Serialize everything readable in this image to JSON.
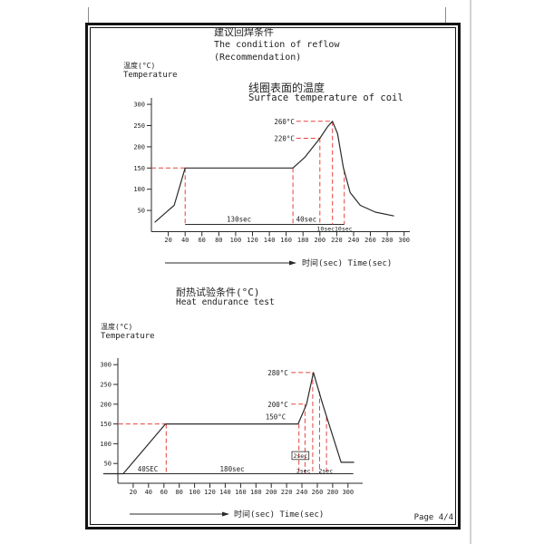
{
  "page": {
    "footer_label": "Page 4/4"
  },
  "colors": {
    "line": "#2a2a2a",
    "red": "#e8433f",
    "frame": "#141414",
    "text": "#222222"
  },
  "header": {
    "title_zh": "建议回焊条件",
    "title_en": "The condition of reflow",
    "title_note": "(Recommendation)"
  },
  "reflow_section": {
    "y_axis_label_zh": "温度(°C)",
    "y_axis_label_en": "Temperature",
    "subtitle_zh": "线圈表面的温度",
    "subtitle_en": "Surface temperature of coil"
  },
  "heat_section": {
    "heading_zh": "耐热试验条件(°C)",
    "heading_en": "Heat endurance test",
    "y_axis_label_zh": "温度(°C)",
    "y_axis_label_en": "Temperature"
  },
  "chart_data": [
    {
      "type": "line",
      "title": "线圈表面的温度 / Surface temperature of coil",
      "xlabel": "时间(sec) Time(sec)",
      "ylabel": "温度(°C) Temperature",
      "xlim": [
        0,
        310
      ],
      "ylim": [
        0,
        310
      ],
      "grid": false,
      "x_ticks": [
        20,
        40,
        60,
        80,
        100,
        120,
        140,
        160,
        180,
        200,
        220,
        240,
        260,
        280,
        300
      ],
      "y_ticks": [
        50,
        100,
        150,
        200,
        250,
        300
      ],
      "curve_points": [
        [
          4,
          22
        ],
        [
          20,
          50
        ],
        [
          27,
          62
        ],
        [
          40,
          150
        ],
        [
          168,
          150
        ],
        [
          182,
          175
        ],
        [
          200,
          220
        ],
        [
          209,
          247
        ],
        [
          215,
          260
        ],
        [
          221,
          231
        ],
        [
          228,
          150
        ],
        [
          236,
          92
        ],
        [
          248,
          62
        ],
        [
          266,
          46
        ],
        [
          288,
          37
        ]
      ],
      "peak_temp": 260,
      "plateau_temp": 150,
      "red_dashed_lines": [
        {
          "x1": 0,
          "y1": 150,
          "x2": 40,
          "y2": 150
        },
        {
          "x1": 40,
          "y1": 150,
          "x2": 40,
          "y2": 17
        },
        {
          "x1": 168,
          "y1": 150,
          "x2": 168,
          "y2": 17
        },
        {
          "x1": 200,
          "y1": 220,
          "x2": 200,
          "y2": 17
        },
        {
          "x1": 215,
          "y1": 260,
          "x2": 215,
          "y2": 17
        },
        {
          "x1": 229,
          "y1": 145,
          "x2": 229,
          "y2": 17
        },
        {
          "x1": 172,
          "y1": 260,
          "x2": 215,
          "y2": 260
        },
        {
          "x1": 172,
          "y1": 220,
          "x2": 200,
          "y2": 220
        }
      ],
      "black_lines": [
        {
          "x1": 40,
          "y1": 17,
          "x2": 229,
          "y2": 17
        }
      ],
      "annotations": [
        {
          "text": "260°C",
          "t": 170,
          "T": 260,
          "anchor": "end",
          "dy": 3
        },
        {
          "text": "220°C",
          "t": 170,
          "T": 220,
          "anchor": "end",
          "dy": 3
        },
        {
          "text": "130sec",
          "t": 104,
          "T": 24,
          "anchor": "middle"
        },
        {
          "text": "40sec",
          "t": 184,
          "T": 24,
          "anchor": "middle"
        },
        {
          "text": "10sec",
          "t": 207,
          "T": 2,
          "anchor": "middle",
          "size": 6.5
        },
        {
          "text": "10sec",
          "t": 228,
          "T": 2,
          "anchor": "middle",
          "size": 6.5
        }
      ]
    },
    {
      "type": "line",
      "title": "耐热试验条件(°C) / Heat endurance test",
      "xlabel": "时间(sec) Time(sec)",
      "ylabel": "温度(°C) Temperature",
      "xlim": [
        0,
        320
      ],
      "ylim": [
        0,
        320
      ],
      "grid": false,
      "x_ticks": [
        20,
        40,
        60,
        80,
        100,
        120,
        140,
        160,
        180,
        200,
        220,
        240,
        260,
        280,
        300
      ],
      "y_ticks": [
        50,
        100,
        150,
        200,
        250,
        300
      ],
      "curve_points": [
        [
          -19,
          24
        ],
        [
          7,
          24
        ],
        [
          62,
          150
        ],
        [
          235,
          150
        ],
        [
          246,
          200
        ],
        [
          255,
          280
        ],
        [
          267,
          200
        ],
        [
          291,
          53
        ],
        [
          308,
          53
        ]
      ],
      "peak_temp": 280,
      "plateau_temp": 150,
      "red_dashed_lines": [
        {
          "x1": 1,
          "y1": 150,
          "x2": 63,
          "y2": 150
        },
        {
          "x1": 63,
          "y1": 150,
          "x2": 63,
          "y2": 24
        },
        {
          "x1": 236,
          "y1": 150,
          "x2": 236,
          "y2": 24
        },
        {
          "x1": 244,
          "y1": 200,
          "x2": 244,
          "y2": 24
        },
        {
          "x1": 254,
          "y1": 280,
          "x2": 254,
          "y2": 24
        },
        {
          "x1": 263,
          "y1": 232,
          "x2": 263,
          "y2": 24
        },
        {
          "x1": 272,
          "y1": 168,
          "x2": 272,
          "y2": 24
        },
        {
          "x1": 226,
          "y1": 280,
          "x2": 254,
          "y2": 280
        },
        {
          "x1": 226,
          "y1": 200,
          "x2": 244,
          "y2": 200
        }
      ],
      "black_lines": [
        {
          "x1": 7,
          "y1": 24,
          "x2": 307,
          "y2": 24
        }
      ],
      "boxes": [
        {
          "x1": 227,
          "y1": 80,
          "x2": 249,
          "y2": 60
        }
      ],
      "annotations": [
        {
          "text": "280°C",
          "t": 222,
          "T": 280,
          "anchor": "end",
          "dy": 3
        },
        {
          "text": "200°C",
          "t": 222,
          "T": 200,
          "anchor": "end",
          "dy": 3
        },
        {
          "text": "150°C",
          "t": 219,
          "T": 150,
          "anchor": "end",
          "dy": -5
        },
        {
          "text": "40SEC",
          "t": 39,
          "T": 30,
          "anchor": "middle"
        },
        {
          "text": "180sec",
          "t": 149,
          "T": 30,
          "anchor": "middle"
        },
        {
          "text": "2sec",
          "t": 238,
          "T": 64,
          "anchor": "middle",
          "size": 6.5
        },
        {
          "text": "2sec",
          "t": 242,
          "T": 26,
          "anchor": "middle",
          "size": 6.5
        },
        {
          "text": "2sec",
          "t": 271,
          "T": 26,
          "anchor": "middle",
          "size": 6.5
        }
      ]
    }
  ]
}
